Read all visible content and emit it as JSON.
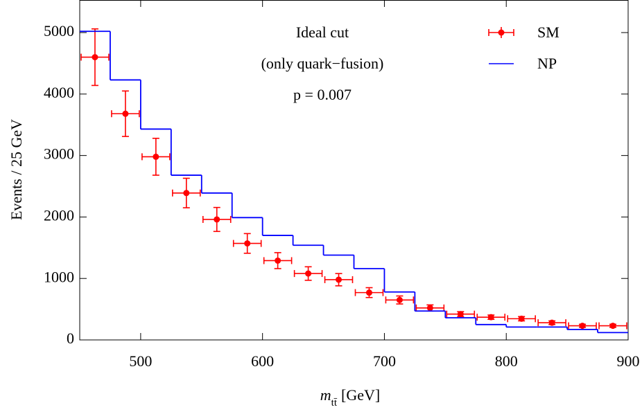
{
  "chart_data": {
    "type": "histogram",
    "ylabel": "Events / 25 GeV",
    "xlabel": {
      "symbol": "m",
      "subscript": "tt̄",
      "unit": "[GeV]"
    },
    "annotations": [
      "Ideal cut",
      "(only quark−fusion)",
      "p = 0.007"
    ],
    "bins": [
      450,
      475,
      500,
      525,
      550,
      575,
      600,
      625,
      650,
      675,
      700,
      725,
      750,
      775,
      800,
      825,
      850,
      875,
      900
    ],
    "series": [
      {
        "name": "SM",
        "color": "#ff0000",
        "style": "errorbar",
        "values": [
          4600,
          3680,
          2980,
          2390,
          1960,
          1570,
          1290,
          1080,
          980,
          770,
          650,
          520,
          420,
          370,
          345,
          280,
          230,
          230
        ],
        "errors": [
          460,
          370,
          300,
          240,
          195,
          160,
          130,
          110,
          100,
          80,
          65,
          50,
          40,
          35,
          35,
          30,
          25,
          25
        ]
      },
      {
        "name": "NP",
        "color": "#0000ff",
        "style": "step",
        "values": [
          5020,
          4230,
          3430,
          2680,
          2390,
          1990,
          1700,
          1540,
          1380,
          1160,
          780,
          470,
          360,
          250,
          210,
          210,
          170,
          120
        ]
      }
    ],
    "xlim": [
      450,
      900
    ],
    "ylim": [
      0,
      5530
    ],
    "xticks": [
      500,
      600,
      700,
      800,
      900
    ],
    "yticks": [
      0,
      1000,
      2000,
      3000,
      4000,
      5000
    ],
    "legend": "upper right"
  }
}
